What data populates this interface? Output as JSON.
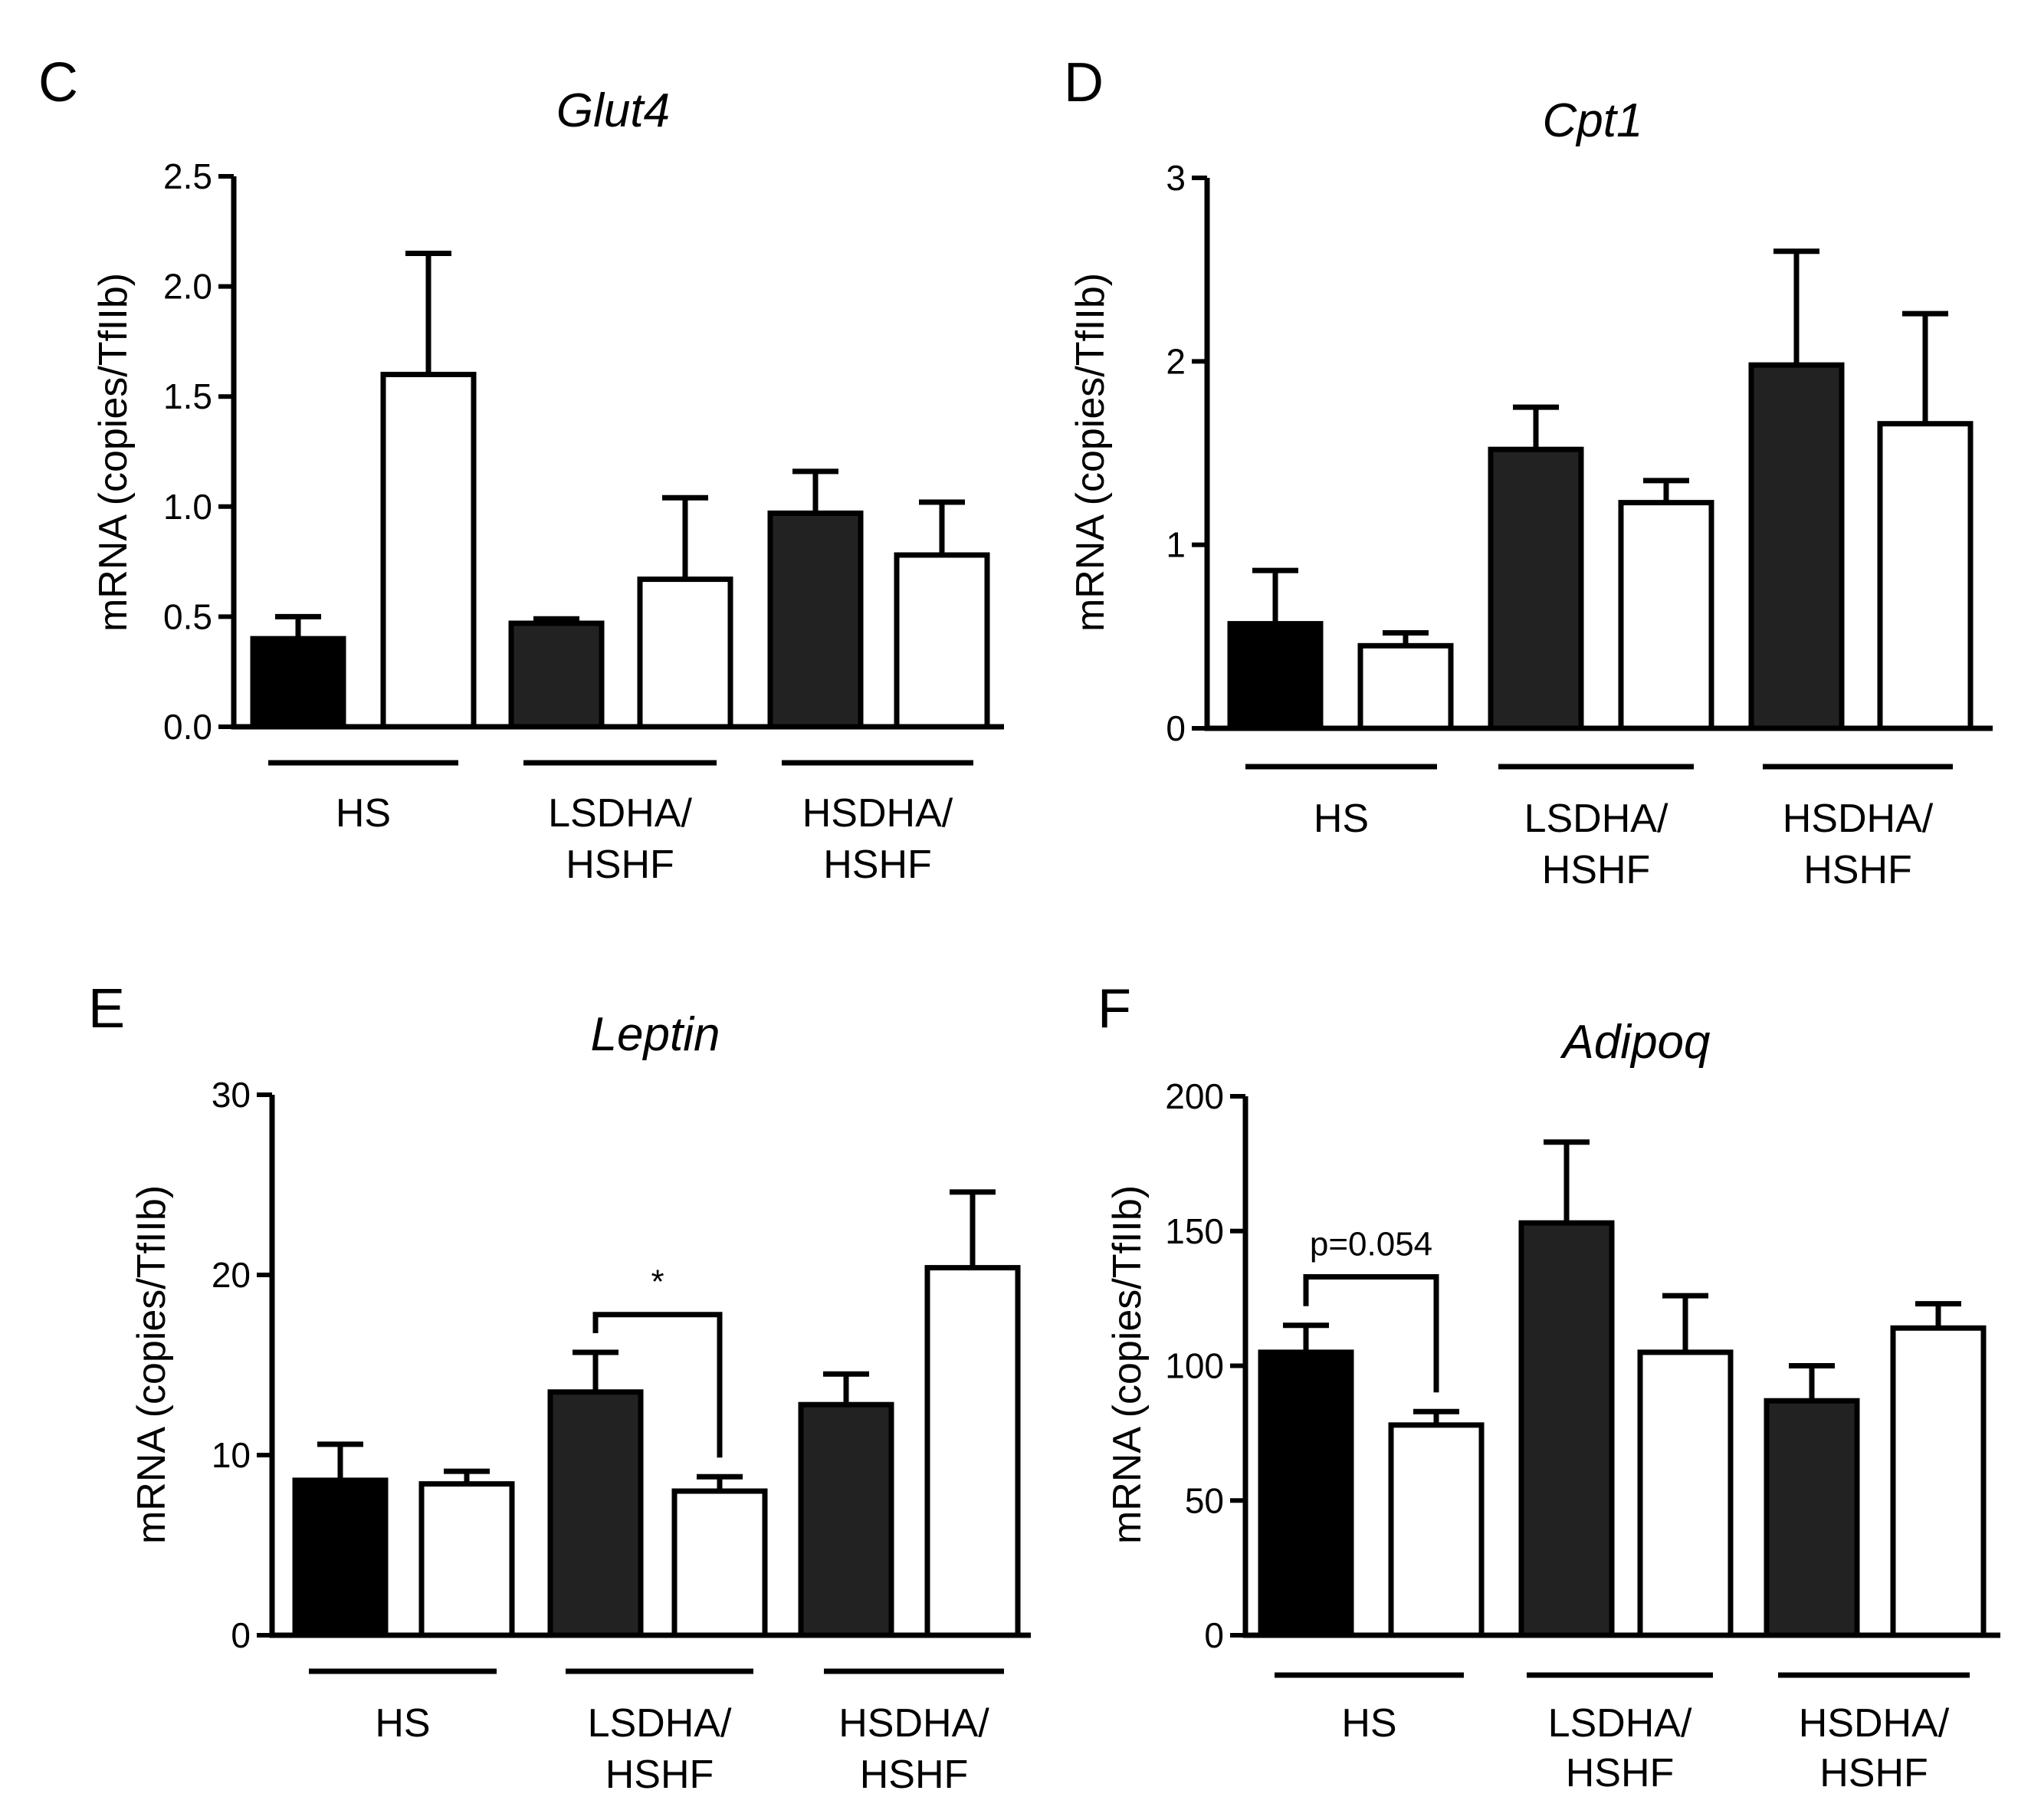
{
  "chart_data": [
    {
      "type": "bar",
      "panel": "C",
      "title": "Glut4",
      "ylabel": "mRNA (copies/TfIIb)",
      "ylim": [
        0,
        2.5
      ],
      "yticks": [
        "0.0",
        "0.5",
        "1.0",
        "1.5",
        "2.0",
        "2.5"
      ],
      "groups": [
        {
          "line1": "HS",
          "line2": ""
        },
        {
          "line1": "LSDHA/",
          "line2": "HSHF"
        },
        {
          "line1": "HSDHA/",
          "line2": "HSHF"
        }
      ],
      "bars": [
        {
          "group": 0,
          "fill": "#000000",
          "value": 0.4,
          "err": 0.1
        },
        {
          "group": 0,
          "fill": "#ffffff",
          "value": 1.6,
          "err": 0.55
        },
        {
          "group": 1,
          "fill": "#222222",
          "value": 0.47,
          "err": 0.02
        },
        {
          "group": 1,
          "fill": "#ffffff",
          "value": 0.67,
          "err": 0.37
        },
        {
          "group": 2,
          "fill": "#222222",
          "value": 0.97,
          "err": 0.19
        },
        {
          "group": 2,
          "fill": "#ffffff",
          "value": 0.78,
          "err": 0.24
        }
      ],
      "annotations": []
    },
    {
      "type": "bar",
      "panel": "D",
      "title": "Cpt1",
      "ylabel": "mRNA (copies/TfIIb)",
      "ylim": [
        0,
        3
      ],
      "yticks": [
        "0",
        "1",
        "2",
        "3"
      ],
      "groups": [
        {
          "line1": "HS",
          "line2": ""
        },
        {
          "line1": "LSDHA/",
          "line2": "HSHF"
        },
        {
          "line1": "HSDHA/",
          "line2": "HSHF"
        }
      ],
      "bars": [
        {
          "group": 0,
          "fill": "#000000",
          "value": 0.57,
          "err": 0.29
        },
        {
          "group": 0,
          "fill": "#ffffff",
          "value": 0.45,
          "err": 0.07
        },
        {
          "group": 1,
          "fill": "#222222",
          "value": 1.52,
          "err": 0.23
        },
        {
          "group": 1,
          "fill": "#ffffff",
          "value": 1.23,
          "err": 0.12
        },
        {
          "group": 2,
          "fill": "#222222",
          "value": 1.98,
          "err": 0.62
        },
        {
          "group": 2,
          "fill": "#ffffff",
          "value": 1.66,
          "err": 0.6
        }
      ],
      "annotations": []
    },
    {
      "type": "bar",
      "panel": "E",
      "title": "Leptin",
      "ylabel": "mRNA (copies/TfIIb)",
      "ylim": [
        0,
        30
      ],
      "yticks": [
        "0",
        "10",
        "20",
        "30"
      ],
      "groups": [
        {
          "line1": "HS",
          "line2": ""
        },
        {
          "line1": "LSDHA/",
          "line2": "HSHF"
        },
        {
          "line1": "HSDHA/",
          "line2": "HSHF"
        }
      ],
      "bars": [
        {
          "group": 0,
          "fill": "#000000",
          "value": 8.6,
          "err": 2.0
        },
        {
          "group": 0,
          "fill": "#ffffff",
          "value": 8.4,
          "err": 0.7
        },
        {
          "group": 1,
          "fill": "#222222",
          "value": 13.5,
          "err": 2.2
        },
        {
          "group": 1,
          "fill": "#ffffff",
          "value": 8.0,
          "err": 0.8
        },
        {
          "group": 2,
          "fill": "#222222",
          "value": 12.8,
          "err": 1.7
        },
        {
          "group": 2,
          "fill": "#ffffff",
          "value": 20.4,
          "err": 4.2
        }
      ],
      "annotations": [
        {
          "from": 2,
          "to": 3,
          "value": 17.8,
          "label": "*"
        }
      ]
    },
    {
      "type": "bar",
      "panel": "F",
      "title": "Adipoq",
      "ylabel": "mRNA (copies/TfIIb)",
      "ylim": [
        0,
        200
      ],
      "yticks": [
        "0",
        "50",
        "100",
        "150",
        "200"
      ],
      "groups": [
        {
          "line1": "HS",
          "line2": ""
        },
        {
          "line1": "LSDHA/",
          "line2": "HSHF"
        },
        {
          "line1": "HSDHA/",
          "line2": "HSHF"
        }
      ],
      "bars": [
        {
          "group": 0,
          "fill": "#000000",
          "value": 105,
          "err": 10
        },
        {
          "group": 0,
          "fill": "#ffffff",
          "value": 78,
          "err": 5
        },
        {
          "group": 1,
          "fill": "#222222",
          "value": 153,
          "err": 30
        },
        {
          "group": 1,
          "fill": "#ffffff",
          "value": 105,
          "err": 21
        },
        {
          "group": 2,
          "fill": "#222222",
          "value": 87,
          "err": 13
        },
        {
          "group": 2,
          "fill": "#ffffff",
          "value": 114,
          "err": 9
        }
      ],
      "annotations": [
        {
          "from": 0,
          "to": 1,
          "value": 133,
          "label": "p=0.054"
        }
      ]
    }
  ]
}
